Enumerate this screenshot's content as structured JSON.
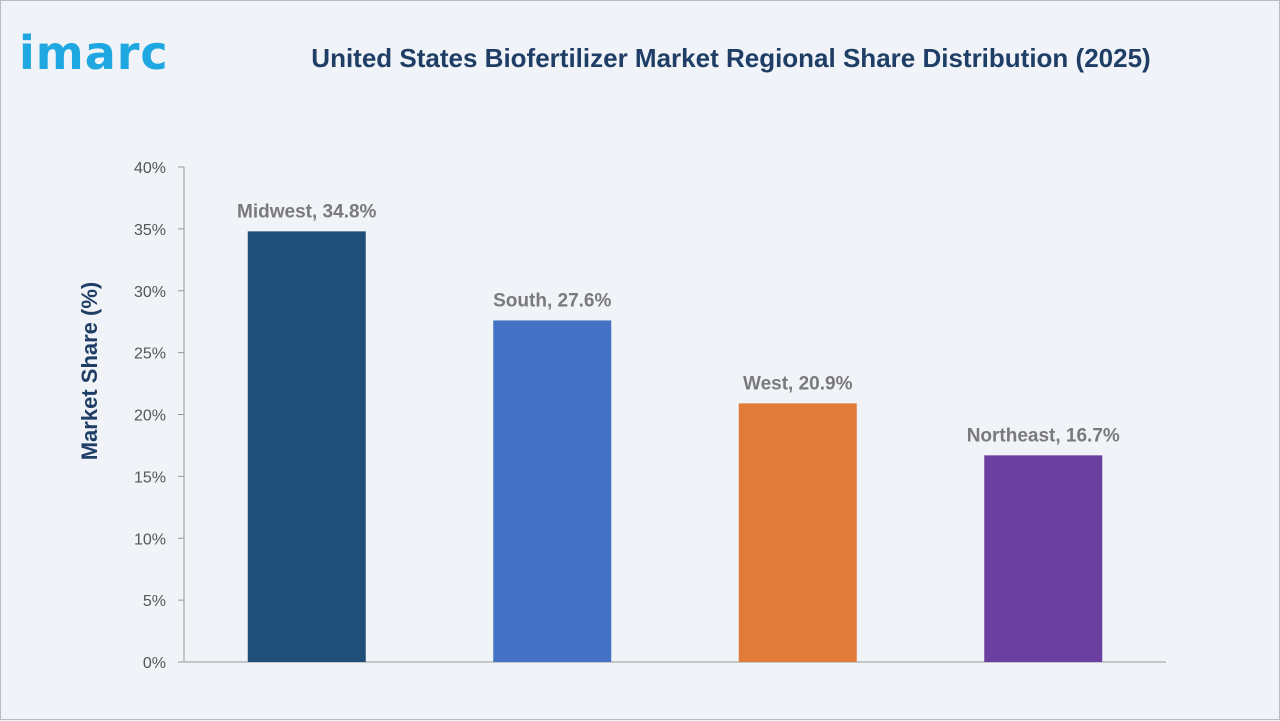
{
  "header": {
    "logo_text": "imarc",
    "title": "United States Biofertilizer Market Regional Share Distribution (2025)"
  },
  "colors": {
    "background": "#f0f3f8",
    "title": "#1f3e66",
    "logo": "#1ea7e1",
    "axis": "#999999"
  },
  "chart_data": {
    "type": "bar",
    "title": "United States Biofertilizer Market Regional Share Distribution (2025)",
    "xlabel": "",
    "ylabel": "Market Share (%)",
    "categories": [
      "Midwest",
      "South",
      "West",
      "Northeast"
    ],
    "values": [
      34.8,
      27.6,
      20.9,
      16.7
    ],
    "bar_colors": [
      "#1f4e79",
      "#4472c4",
      "#e07b39",
      "#6b3fa0"
    ],
    "data_labels": [
      "Midwest, 34.8%",
      "South, 27.6%",
      "West, 20.9%",
      "Northeast, 16.7%"
    ],
    "ylim": [
      0,
      40
    ],
    "yticks": [
      0,
      5,
      10,
      15,
      20,
      25,
      30,
      35,
      40
    ],
    "ytick_labels": [
      "0%",
      "5%",
      "10%",
      "15%",
      "20%",
      "25%",
      "30%",
      "35%",
      "40%"
    ],
    "grid": false,
    "legend": "none"
  }
}
